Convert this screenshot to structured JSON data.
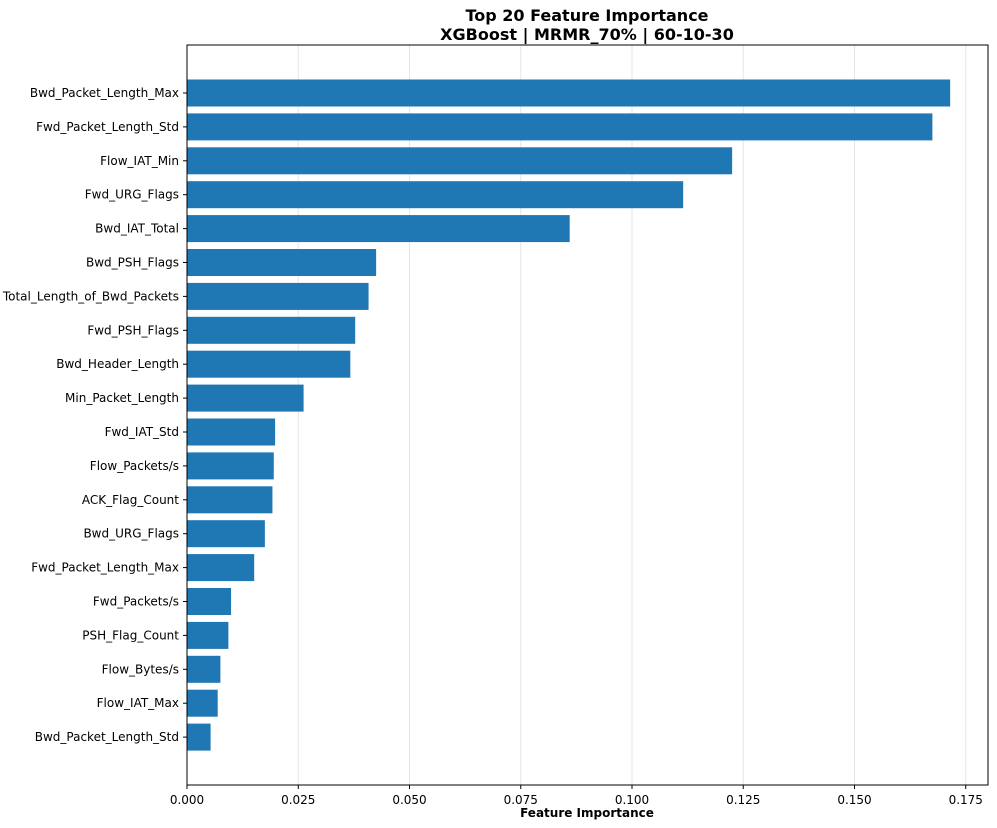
{
  "chart_data": {
    "type": "bar",
    "orientation": "horizontal",
    "title_line1": "Top 20 Feature Importance",
    "title_line2": "XGBoost | MRMR_70% | 60-10-30",
    "xlabel": "Feature Importance",
    "ylabel": "",
    "xlim": [
      0,
      0.18
    ],
    "xticks": [
      0.0,
      0.025,
      0.05,
      0.075,
      0.1,
      0.125,
      0.15,
      0.175
    ],
    "xtick_labels": [
      "0.000",
      "0.025",
      "0.050",
      "0.075",
      "0.100",
      "0.125",
      "0.150",
      "0.175"
    ],
    "grid": "x",
    "bar_color": "#1f77b4",
    "categories": [
      "Bwd_Packet_Length_Max",
      "Fwd_Packet_Length_Std",
      "Flow_IAT_Min",
      "Fwd_URG_Flags",
      "Bwd_IAT_Total",
      "Bwd_PSH_Flags",
      "Total_Length_of_Bwd_Packets",
      "Fwd_PSH_Flags",
      "Bwd_Header_Length",
      "Min_Packet_Length",
      "Fwd_IAT_Std",
      "Flow_Packets/s",
      "ACK_Flag_Count",
      "Bwd_URG_Flags",
      "Fwd_Packet_Length_Max",
      "Fwd_Packets/s",
      "PSH_Flag_Count",
      "Flow_Bytes/s",
      "Flow_IAT_Max",
      "Bwd_Packet_Length_Std"
    ],
    "values": [
      0.1715,
      0.1675,
      0.1225,
      0.1115,
      0.086,
      0.0425,
      0.0408,
      0.0378,
      0.0367,
      0.0262,
      0.0198,
      0.0195,
      0.0192,
      0.0175,
      0.0151,
      0.0099,
      0.0093,
      0.0075,
      0.0069,
      0.0053
    ]
  }
}
